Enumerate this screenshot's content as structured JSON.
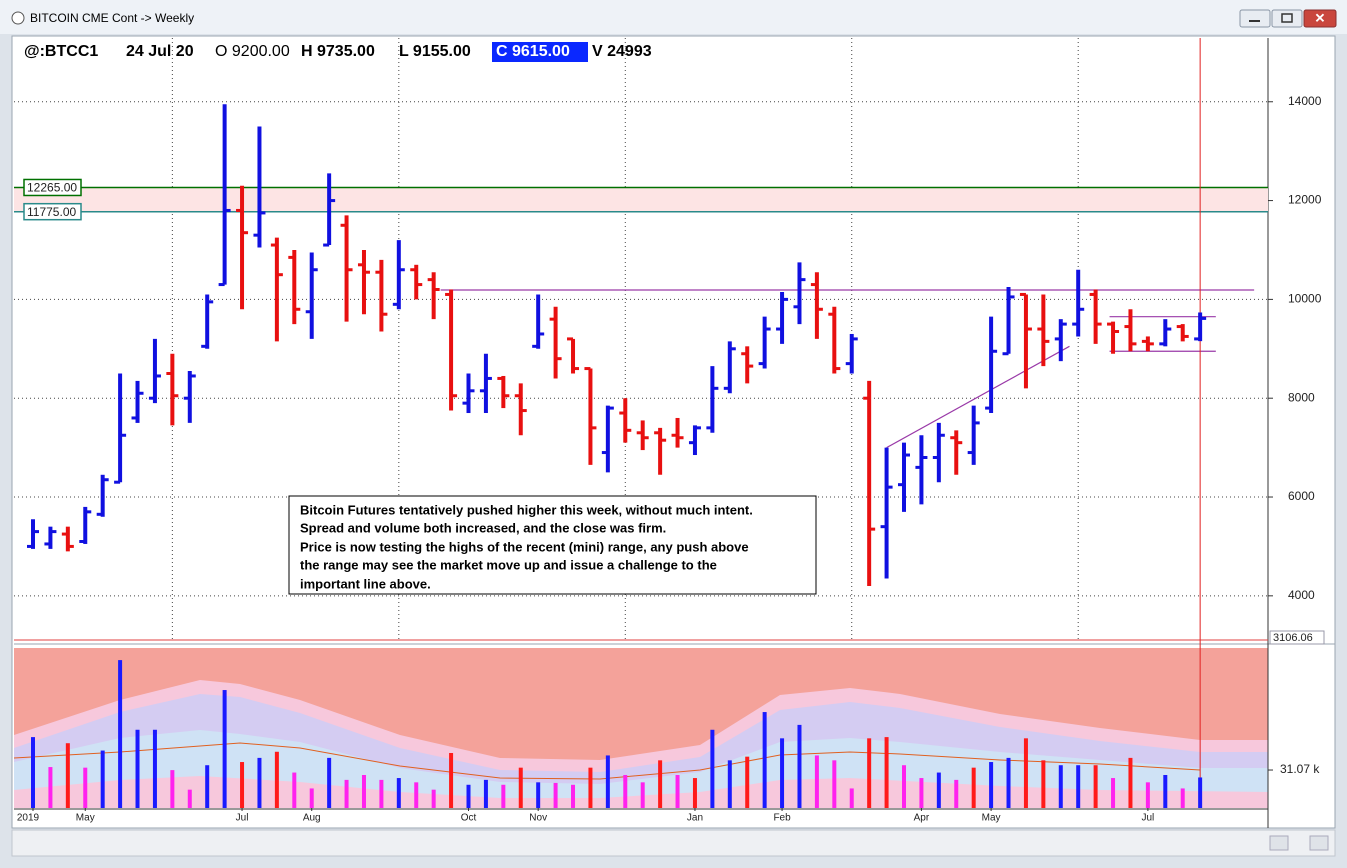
{
  "window_title": "BITCOIN CME Cont -> Weekly",
  "header": {
    "symbol": "@:BTCC1",
    "date": "24 Jul 20",
    "open": "O 9200.00",
    "high": "H 9735.00",
    "low": "L 9155.00",
    "close": "C 9615.00",
    "volume": "V 24993"
  },
  "annotation": [
    "Bitcoin Futures tentatively pushed higher this week, without much intent.",
    "Spread and volume both increased, and the close was firm.",
    "Price is now testing the highs of the recent (mini) range, any push above",
    "the range may see the market move up and issue a challenge to the",
    "important line above."
  ],
  "chart_data": {
    "type": "ohlc",
    "categories": [
      "2019",
      null,
      null,
      "May",
      null,
      null,
      null,
      null,
      null,
      null,
      null,
      null,
      "Jul",
      null,
      null,
      null,
      "Aug",
      null,
      null,
      null,
      null,
      null,
      null,
      null,
      null,
      "Oct",
      null,
      null,
      null,
      "Nov",
      null,
      null,
      null,
      null,
      null,
      null,
      null,
      null,
      "Jan",
      null,
      null,
      null,
      null,
      "Feb",
      null,
      null,
      null,
      null,
      null,
      null,
      null,
      "Apr",
      null,
      null,
      null,
      "May",
      null,
      null,
      null,
      null,
      null,
      null,
      null,
      null,
      "Jul",
      null,
      null,
      null
    ],
    "open": [
      5000,
      5050,
      5250,
      5100,
      5650,
      6300,
      7600,
      8000,
      8500,
      8000,
      9050,
      10300,
      11800,
      11300,
      11100,
      10850,
      9750,
      11100,
      11500,
      10700,
      10550,
      9900,
      10600,
      10400,
      10100,
      7900,
      8150,
      8400,
      8050,
      9050,
      9600,
      9200,
      8600,
      6900,
      7700,
      7300,
      7300,
      7250,
      7100,
      7400,
      8200,
      8900,
      8700,
      9400,
      9850,
      10300,
      9700,
      8700,
      8000,
      5400,
      6250,
      6600,
      6800,
      7200,
      6900,
      7800,
      8900,
      10100,
      9400,
      9200,
      9500,
      10100,
      9500,
      9450,
      9150,
      9100,
      9450,
      9200
    ],
    "high": [
      5550,
      5400,
      5400,
      5800,
      6450,
      8500,
      8350,
      9200,
      8900,
      8550,
      10100,
      13950,
      12300,
      13500,
      11250,
      11000,
      10950,
      12550,
      11700,
      11000,
      10800,
      11200,
      10700,
      10550,
      10200,
      8500,
      8900,
      8450,
      8300,
      10100,
      9850,
      9200,
      8600,
      7850,
      8000,
      7550,
      7400,
      7600,
      7450,
      8650,
      9150,
      9050,
      9650,
      10150,
      10750,
      10550,
      9850,
      9300,
      8350,
      7000,
      7100,
      7250,
      7500,
      7350,
      7850,
      9650,
      10250,
      10100,
      10100,
      9600,
      10600,
      10200,
      9550,
      9800,
      9250,
      9600,
      9500,
      9735
    ],
    "low": [
      4950,
      4950,
      4900,
      5050,
      5600,
      6300,
      7500,
      7900,
      7450,
      7500,
      9000,
      10300,
      9800,
      11050,
      9150,
      9500,
      9200,
      11100,
      9550,
      9700,
      9350,
      9800,
      10000,
      9600,
      7750,
      7700,
      7700,
      7800,
      7250,
      9000,
      8400,
      8500,
      6650,
      6500,
      7100,
      6950,
      6450,
      7000,
      6850,
      7300,
      8100,
      8300,
      8600,
      9100,
      9500,
      9200,
      8500,
      8500,
      4200,
      4350,
      5700,
      5850,
      6300,
      6450,
      6650,
      7700,
      8900,
      8200,
      8650,
      8750,
      9250,
      9100,
      8900,
      8950,
      8950,
      9050,
      9150,
      9155
    ],
    "close": [
      5300,
      5300,
      5000,
      5700,
      6350,
      7250,
      8100,
      8450,
      8050,
      8450,
      9950,
      11800,
      11350,
      11750,
      10500,
      9800,
      10600,
      12000,
      10600,
      10550,
      9700,
      10600,
      10300,
      10200,
      8050,
      8150,
      8400,
      8050,
      7750,
      9300,
      8800,
      8600,
      7400,
      7800,
      7350,
      7200,
      7150,
      7200,
      7400,
      8200,
      9000,
      8650,
      9400,
      10000,
      10400,
      9800,
      8600,
      9200,
      5350,
      6200,
      6850,
      6800,
      7250,
      7100,
      7500,
      8950,
      10050,
      9400,
      9150,
      9500,
      9800,
      9500,
      9350,
      9100,
      9100,
      9400,
      9250,
      9615
    ],
    "up_color": "#1010e0",
    "down_color": "#e81010",
    "ylim": [
      3106.06,
      15250
    ],
    "yticks": [
      4000,
      6000,
      8000,
      10000,
      12000,
      14000
    ],
    "xgrid": [
      8,
      21,
      34,
      47,
      60
    ],
    "levels": [
      {
        "value": 12265,
        "label": "12265.00",
        "color": "#007000"
      },
      {
        "value": 11775,
        "label": "11775.00",
        "color": "#2a8a8a"
      }
    ],
    "trendlines": {
      "color": "#9a3aa8",
      "lines": [
        {
          "x": [
            23.4,
            70.1
          ],
          "y": [
            10190,
            10190
          ]
        },
        {
          "x": [
            49,
            59.5
          ],
          "y": [
            7000,
            9050
          ]
        },
        {
          "x": [
            61.8,
            67.9
          ],
          "y": [
            9650,
            9650
          ]
        },
        {
          "x": [
            61.8,
            67.9
          ],
          "y": [
            8950,
            8950
          ]
        }
      ]
    },
    "volume": [
      58000,
      33500,
      53000,
      33000,
      47000,
      121000,
      64000,
      64000,
      31000,
      15000,
      35000,
      96500,
      37600,
      41000,
      46000,
      29000,
      16000,
      41000,
      23000,
      27000,
      23000,
      24500,
      21000,
      15000,
      45000,
      19000,
      23000,
      19000,
      33000,
      21000,
      20500,
      19000,
      33000,
      43000,
      27000,
      21000,
      39000,
      27000,
      24500,
      64000,
      39000,
      42000,
      78500,
      57000,
      68000,
      43000,
      39000,
      16000,
      57000,
      58000,
      35000,
      24500,
      29000,
      23000,
      33000,
      37600,
      41000,
      57000,
      39000,
      35000,
      35000,
      35000,
      24500,
      41000,
      21000,
      27000,
      16000,
      24993
    ],
    "volume_colors": [
      "#1a1aff",
      "#ff22ee",
      "#ff1a1a",
      "#ff22ee",
      "#1a1aff",
      "#1a1aff",
      "#1a1aff",
      "#1a1aff",
      "#ff22ee",
      "#ff22ee",
      "#1a1aff",
      "#1a1aff",
      "#ff1a1a",
      "#1a1aff",
      "#ff1a1a",
      "#ff22ee",
      "#ff22ee",
      "#1a1aff",
      "#ff22ee",
      "#ff22ee",
      "#ff22ee",
      "#1a1aff",
      "#ff22ee",
      "#ff22ee",
      "#ff1a1a",
      "#1a1aff",
      "#1a1aff",
      "#ff22ee",
      "#ff1a1a",
      "#1a1aff",
      "#ff22ee",
      "#ff22ee",
      "#ff1a1a",
      "#1a1aff",
      "#ff22ee",
      "#ff22ee",
      "#ff1a1a",
      "#ff22ee",
      "#ff1a1a",
      "#1a1aff",
      "#1a1aff",
      "#ff1a1a",
      "#1a1aff",
      "#1a1aff",
      "#1a1aff",
      "#ff22ee",
      "#ff22ee",
      "#ff22ee",
      "#ff1a1a",
      "#ff1a1a",
      "#ff22ee",
      "#ff22ee",
      "#1a1aff",
      "#ff22ee",
      "#ff1a1a",
      "#1a1aff",
      "#1a1aff",
      "#ff1a1a",
      "#ff1a1a",
      "#1a1aff",
      "#1a1aff",
      "#ff1a1a",
      "#ff22ee",
      "#ff1a1a",
      "#ff22ee",
      "#1a1aff",
      "#ff22ee",
      "#1a1aff"
    ],
    "vlim": [
      0,
      130900
    ],
    "vticks": [
      {
        "value": 31070,
        "label": "31.07 k"
      }
    ]
  }
}
